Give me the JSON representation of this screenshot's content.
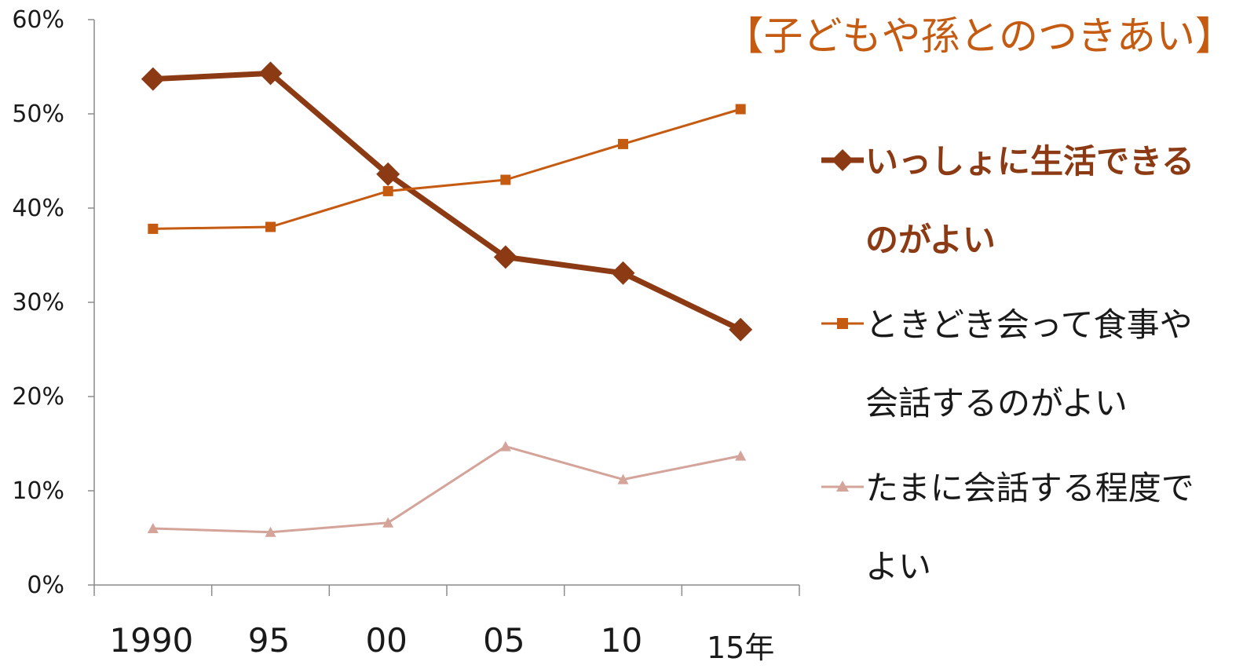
{
  "title": "【子どもや孫とのつきあい】",
  "chart_data": {
    "type": "line",
    "title": "【子どもや孫とのつきあい】",
    "categories": [
      "1990",
      "95",
      "00",
      "05",
      "10",
      "15年"
    ],
    "ylim": [
      0,
      60
    ],
    "yticks": [
      "0%",
      "10%",
      "20%",
      "30%",
      "40%",
      "50%",
      "60%"
    ],
    "grid": false,
    "legend_position": "right",
    "series": [
      {
        "name": "いっしょに生活できるのがよい",
        "values": [
          53.7,
          54.3,
          43.6,
          34.8,
          33.1,
          27.1
        ],
        "color": "#8b3a14",
        "marker": "diamond",
        "bold": true
      },
      {
        "name": "ときどき会って食事や会話するのがよい",
        "values": [
          37.8,
          38.0,
          41.8,
          43.0,
          46.8,
          50.5
        ],
        "color": "#c55a11",
        "marker": "square",
        "bold": false
      },
      {
        "name": "たまに会話する程度でよい",
        "values": [
          6.0,
          5.6,
          6.6,
          14.7,
          11.2,
          13.7
        ],
        "color": "#d4a49a",
        "marker": "triangle",
        "bold": false
      }
    ]
  }
}
